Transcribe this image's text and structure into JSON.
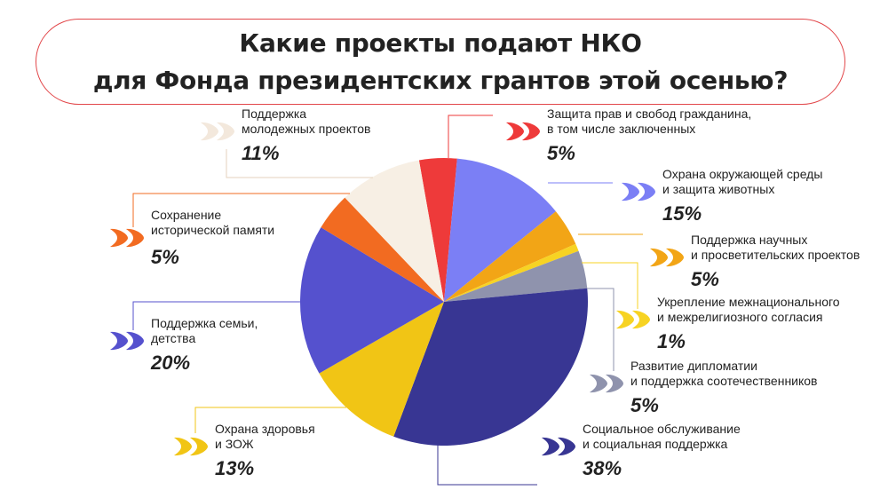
{
  "title": {
    "line1": "Какие проекты подают НКО",
    "line2": "для Фонда президентских грантов этой осенью?"
  },
  "chart_data": {
    "type": "pie",
    "title": "Какие проекты подают НКО для Фонда президентских грантов этой осенью?",
    "slices": [
      {
        "id": "rights",
        "label": [
          "Защита прав и свобод гражданина,",
          "в том числе заключенных"
        ],
        "value": 5,
        "value_label": "5%",
        "color": "#ee3a3a"
      },
      {
        "id": "environment",
        "label": [
          "Охрана окружающей среды",
          "и защита животных"
        ],
        "value": 15,
        "value_label": "15%",
        "color": "#7b7ff5"
      },
      {
        "id": "science",
        "label": [
          "Поддержка научных",
          "и просветительских проектов"
        ],
        "value": 5,
        "value_label": "5%",
        "color": "#f2a516"
      },
      {
        "id": "interethnic",
        "label": [
          "Укрепление межнационального",
          "и межрелигиозного согласия"
        ],
        "value": 1,
        "value_label": "1%",
        "color": "#f7d323"
      },
      {
        "id": "diplomacy",
        "label": [
          "Развитие дипломатии",
          "и поддержка соотечественников"
        ],
        "value": 5,
        "value_label": "5%",
        "color": "#8f93ad"
      },
      {
        "id": "social",
        "label": [
          "Социальное обслуживание",
          "и социальная поддержка"
        ],
        "value": 38,
        "value_label": "38%",
        "color": "#383693"
      },
      {
        "id": "health",
        "label": [
          "Охрана здоровья",
          "и ЗОЖ"
        ],
        "value": 13,
        "value_label": "13%",
        "color": "#f1c515"
      },
      {
        "id": "family",
        "label": [
          "Поддержка семьи,",
          "детства"
        ],
        "value": 20,
        "value_label": "20%",
        "color": "#5551ce"
      },
      {
        "id": "memory",
        "label": [
          "Сохранение",
          "исторической памяти"
        ],
        "value": 5,
        "value_label": "5%",
        "color": "#f26b21"
      },
      {
        "id": "youth",
        "label": [
          "Поддержка",
          "молодежных проектов"
        ],
        "value": 11,
        "value_label": "11%",
        "color": "#f7efe4"
      }
    ]
  },
  "icon_name": "double-heart-chevron-icon"
}
